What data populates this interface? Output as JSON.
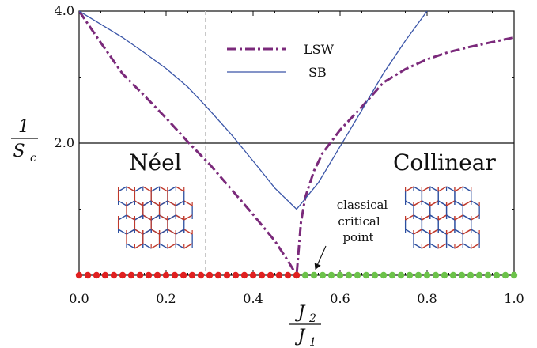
{
  "chart_data": {
    "type": "line",
    "xlabel": {
      "numerator": "J",
      "numerator_sub": "2",
      "denominator": "J",
      "denominator_sub": "1"
    },
    "ylabel": {
      "numerator": "1",
      "denominator": "S",
      "denominator_sub": "c"
    },
    "xlim": [
      0.0,
      1.0
    ],
    "ylim": [
      0.0,
      4.0
    ],
    "x_ticks": [
      0.0,
      0.2,
      0.4,
      0.6,
      0.8,
      1.0
    ],
    "x_tick_labels": [
      "0.0",
      "0.2",
      "0.4",
      "0.6",
      "0.8",
      "1.0"
    ],
    "y_ticks": [
      2.0,
      4.0
    ],
    "y_tick_labels": [
      "2.0",
      "4.0"
    ],
    "reference_lines": {
      "horizontal_y": 2.0,
      "vertical_dashed_x": 0.29
    },
    "legend": {
      "placement": "top-center",
      "entries": [
        {
          "label": "LSW",
          "style": "dash-dot",
          "color": "#7b2a7b"
        },
        {
          "label": "SB",
          "style": "solid",
          "color": "#3a55a8"
        }
      ]
    },
    "series": [
      {
        "name": "LSW",
        "color": "#7b2a7b",
        "style": "dash-dot",
        "x": [
          0.0,
          0.05,
          0.1,
          0.15,
          0.2,
          0.25,
          0.3,
          0.35,
          0.4,
          0.45,
          0.48,
          0.5,
          0.51,
          0.52,
          0.54,
          0.56,
          0.6,
          0.65,
          0.7,
          0.75,
          0.8,
          0.85,
          0.9,
          0.95,
          1.0
        ],
        "y": [
          4.0,
          3.52,
          3.05,
          2.72,
          2.38,
          2.02,
          1.68,
          1.3,
          0.92,
          0.52,
          0.22,
          0.0,
          0.8,
          1.18,
          1.58,
          1.85,
          2.2,
          2.55,
          2.92,
          3.12,
          3.27,
          3.38,
          3.46,
          3.53,
          3.6
        ]
      },
      {
        "name": "SB",
        "color": "#3a55a8",
        "style": "solid",
        "x": [
          0.0,
          0.05,
          0.1,
          0.15,
          0.2,
          0.25,
          0.3,
          0.35,
          0.4,
          0.45,
          0.5,
          0.55,
          0.6,
          0.65,
          0.7,
          0.75,
          0.8
        ],
        "y": [
          4.0,
          3.8,
          3.6,
          3.37,
          3.13,
          2.85,
          2.5,
          2.13,
          1.73,
          1.32,
          1.0,
          1.4,
          1.95,
          2.5,
          3.06,
          3.55,
          4.0
        ]
      }
    ],
    "phase_points": {
      "neel": {
        "color": "#e02020",
        "x": [
          0.0,
          0.02,
          0.04,
          0.06,
          0.08,
          0.1,
          0.12,
          0.14,
          0.16,
          0.18,
          0.2,
          0.22,
          0.24,
          0.26,
          0.28,
          0.3,
          0.32,
          0.34,
          0.36,
          0.38,
          0.4,
          0.42,
          0.44,
          0.46,
          0.48,
          0.5
        ]
      },
      "collinear": {
        "color": "#6cc24a",
        "x": [
          0.5,
          0.52,
          0.54,
          0.56,
          0.58,
          0.6,
          0.62,
          0.64,
          0.66,
          0.68,
          0.7,
          0.72,
          0.74,
          0.76,
          0.78,
          0.8,
          0.82,
          0.84,
          0.86,
          0.88,
          0.9,
          0.92,
          0.94,
          0.96,
          0.98,
          1.0
        ]
      }
    },
    "annotations": {
      "neel_label": "Néel",
      "collinear_label": "Collinear",
      "critical_point": [
        "classical",
        "critical",
        "point"
      ],
      "critical_point_x": 0.5
    }
  }
}
